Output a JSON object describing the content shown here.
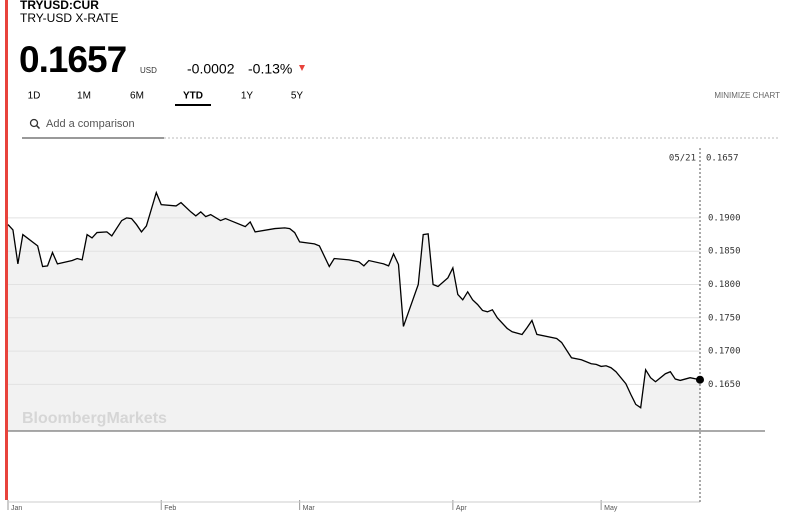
{
  "ticker": "TRYUSD:CUR",
  "name": "TRY-USD X-RATE",
  "price": "0.1657",
  "currency": "USD",
  "change": "-0.0002",
  "change_percent": "-0.13%",
  "ranges": [
    "1D",
    "1M",
    "6M",
    "YTD",
    "1Y",
    "5Y"
  ],
  "active_range": 3,
  "minimize": "MINIMIZE CHART",
  "search_placeholder": "Add a comparison",
  "chart_data": {
    "type": "line",
    "color": "#000000",
    "fill": "#f2f2f2",
    "watermark": "BloombergMarkets",
    "crosshair_label": "05/21",
    "x": [
      1,
      2,
      3,
      4,
      7,
      8,
      9,
      10,
      11,
      14,
      15,
      16,
      17,
      18,
      19,
      21,
      22,
      24,
      25,
      26,
      27,
      28,
      29,
      31,
      32,
      35,
      36,
      38,
      39,
      40,
      41,
      42,
      44,
      45,
      46,
      49,
      50,
      51,
      55,
      57,
      58,
      59,
      60,
      63,
      64,
      66,
      67,
      70,
      72,
      73,
      74,
      77,
      78,
      79,
      80,
      81,
      84,
      85,
      86,
      87,
      88,
      90,
      91,
      92,
      93,
      94,
      95,
      96,
      97,
      98,
      99,
      100,
      102,
      103,
      105,
      106,
      107,
      108,
      112,
      113,
      115,
      117,
      119,
      120,
      121,
      122,
      123,
      124,
      126,
      127,
      128,
      129,
      130,
      131,
      132,
      134,
      135,
      136,
      137,
      138,
      139,
      141
    ],
    "values": [
      0.189,
      0.1882,
      0.1831,
      0.1875,
      0.1858,
      0.1827,
      0.1828,
      0.1848,
      0.1831,
      0.1836,
      0.1839,
      0.1837,
      0.1875,
      0.187,
      0.1878,
      0.1879,
      0.1873,
      0.1896,
      0.19,
      0.1899,
      0.189,
      0.1879,
      0.1888,
      0.1938,
      0.192,
      0.1918,
      0.1923,
      0.1909,
      0.1903,
      0.1909,
      0.1902,
      0.1905,
      0.1896,
      0.1899,
      0.1896,
      0.1887,
      0.1894,
      0.1879,
      0.1884,
      0.1885,
      0.1884,
      0.1878,
      0.1864,
      0.1861,
      0.1858,
      0.1827,
      0.1839,
      0.1837,
      0.1834,
      0.1828,
      0.1836,
      0.1831,
      0.1828,
      0.1846,
      0.183,
      0.1737,
      0.18,
      0.1875,
      0.1876,
      0.18,
      0.1797,
      0.181,
      0.1825,
      0.1785,
      0.1777,
      0.1789,
      0.1777,
      0.177,
      0.1761,
      0.1759,
      0.1762,
      0.175,
      0.1734,
      0.1729,
      0.1725,
      0.1735,
      0.1746,
      0.1725,
      0.1719,
      0.1713,
      0.169,
      0.1687,
      0.1681,
      0.168,
      0.1677,
      0.1678,
      0.1675,
      0.1669,
      0.1651,
      0.1635,
      0.162,
      0.1615,
      0.1672,
      0.166,
      0.1654,
      0.1666,
      0.1669,
      0.1658,
      0.1656,
      0.1658,
      0.166,
      0.1657
    ],
    "xlim": [
      1,
      141
    ],
    "xticks": [
      {
        "value": 1,
        "label": "Jan"
      },
      {
        "value": 32,
        "label": "Feb"
      },
      {
        "value": 60,
        "label": "Mar"
      },
      {
        "value": 91,
        "label": "Apr"
      },
      {
        "value": 121,
        "label": "May"
      }
    ],
    "ylim": [
      0.158,
      0.2005
    ],
    "yticks": [
      {
        "value": 0.19,
        "label": "0.1900"
      },
      {
        "value": 0.185,
        "label": "0.1850"
      },
      {
        "value": 0.18,
        "label": "0.1800"
      },
      {
        "value": 0.175,
        "label": "0.1750"
      },
      {
        "value": 0.17,
        "label": "0.1700"
      },
      {
        "value": 0.165,
        "label": "0.1650"
      }
    ],
    "grid": true
  }
}
